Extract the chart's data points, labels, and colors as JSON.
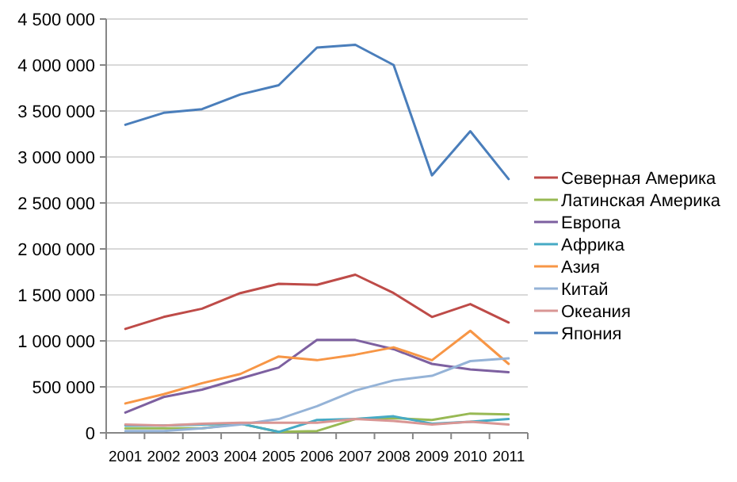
{
  "chart_data": {
    "type": "line",
    "categories": [
      "2001",
      "2002",
      "2003",
      "2004",
      "2005",
      "2006",
      "2007",
      "2008",
      "2009",
      "2010",
      "2011"
    ],
    "series": [
      {
        "name": "Северная Америка",
        "color": "#be4b48",
        "values": [
          1130000,
          1260000,
          1350000,
          1520000,
          1620000,
          1610000,
          1720000,
          1520000,
          1260000,
          1400000,
          1200000
        ]
      },
      {
        "name": "Латинская Америка",
        "color": "#98b954",
        "values": [
          50000,
          50000,
          50000,
          100000,
          10000,
          20000,
          150000,
          160000,
          140000,
          210000,
          200000
        ]
      },
      {
        "name": "Европа",
        "color": "#7d60a0",
        "values": [
          220000,
          390000,
          470000,
          590000,
          710000,
          1010000,
          1010000,
          910000,
          750000,
          690000,
          660000
        ]
      },
      {
        "name": "Африка",
        "color": "#46aac5",
        "values": [
          80000,
          80000,
          90000,
          100000,
          10000,
          140000,
          150000,
          180000,
          100000,
          120000,
          150000
        ]
      },
      {
        "name": "Азия",
        "color": "#f79646",
        "values": [
          320000,
          420000,
          540000,
          640000,
          830000,
          790000,
          850000,
          930000,
          790000,
          1110000,
          750000
        ]
      },
      {
        "name": "Китай",
        "color": "#95b3d7",
        "values": [
          20000,
          20000,
          50000,
          90000,
          150000,
          290000,
          460000,
          570000,
          620000,
          780000,
          810000
        ]
      },
      {
        "name": "Океания",
        "color": "#d99694",
        "values": [
          90000,
          80000,
          100000,
          110000,
          110000,
          110000,
          150000,
          130000,
          90000,
          120000,
          90000
        ]
      },
      {
        "name": "Япония",
        "color": "#4a7ebb",
        "values": [
          3350000,
          3480000,
          3520000,
          3680000,
          3780000,
          4190000,
          4220000,
          4000000,
          2800000,
          3280000,
          2760000
        ]
      }
    ],
    "ylim": [
      0,
      4500000
    ],
    "yticks": [
      0,
      {
        "value": 500000,
        "label": "500 000"
      },
      {
        "value": 1000000,
        "label": "1 000 000"
      },
      {
        "value": 1500000,
        "label": "1 500 000"
      },
      {
        "value": 2000000,
        "label": "2 000 000"
      },
      {
        "value": 2500000,
        "label": "2 500 000"
      },
      {
        "value": 3000000,
        "label": "3 000 000"
      },
      {
        "value": 3500000,
        "label": "3 500 000"
      },
      {
        "value": 4000000,
        "label": "4 000 000"
      },
      {
        "value": 4500000,
        "label": "4 500 000"
      }
    ],
    "grid": "y",
    "legend": "right",
    "marker": "none",
    "line_style": "solid"
  }
}
